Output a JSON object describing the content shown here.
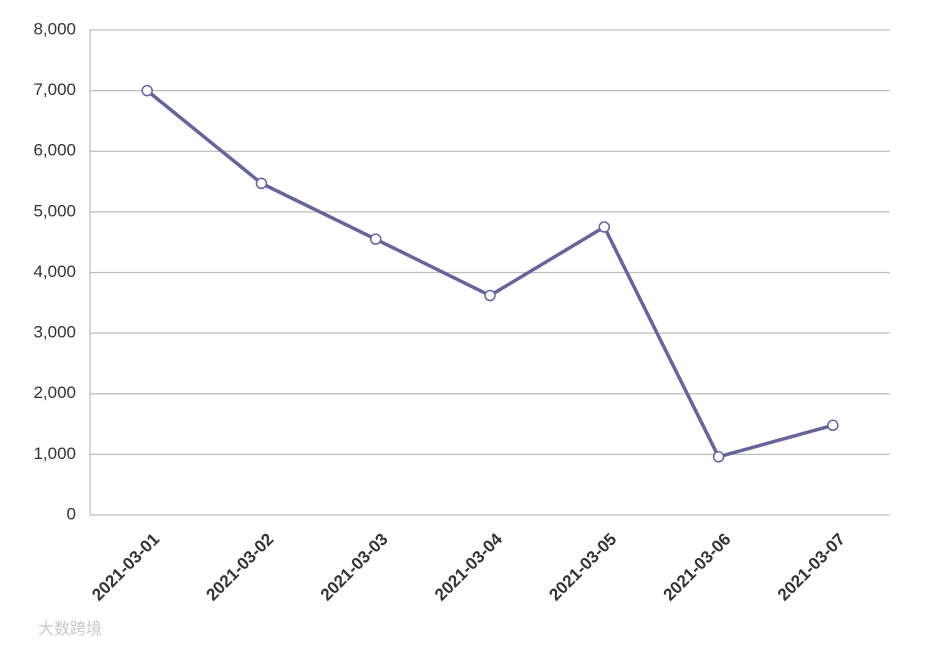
{
  "chart_data": {
    "type": "line",
    "categories": [
      "2021-03-01",
      "2021-03-02",
      "2021-03-03",
      "2021-03-04",
      "2021-03-05",
      "2021-03-06",
      "2021-03-07"
    ],
    "series": [
      {
        "color": "#67649a",
        "values": [
          7000,
          5470,
          4550,
          3620,
          4750,
          960,
          1480
        ]
      }
    ],
    "ylim": [
      0,
      8000
    ],
    "yticks": [
      0,
      {
        "value": 1000,
        "label": "1,000"
      },
      {
        "value": 2000,
        "label": "2,000"
      },
      {
        "value": 3000,
        "label": "3,000"
      },
      {
        "value": 4000,
        "label": "4,000"
      },
      {
        "value": 5000,
        "label": "5,000"
      },
      {
        "value": 6000,
        "label": "6,000"
      },
      {
        "value": 7000,
        "label": "7,000"
      },
      {
        "value": 8000,
        "label": "8,000"
      }
    ],
    "grid": true,
    "watermark": "大数跨境"
  }
}
